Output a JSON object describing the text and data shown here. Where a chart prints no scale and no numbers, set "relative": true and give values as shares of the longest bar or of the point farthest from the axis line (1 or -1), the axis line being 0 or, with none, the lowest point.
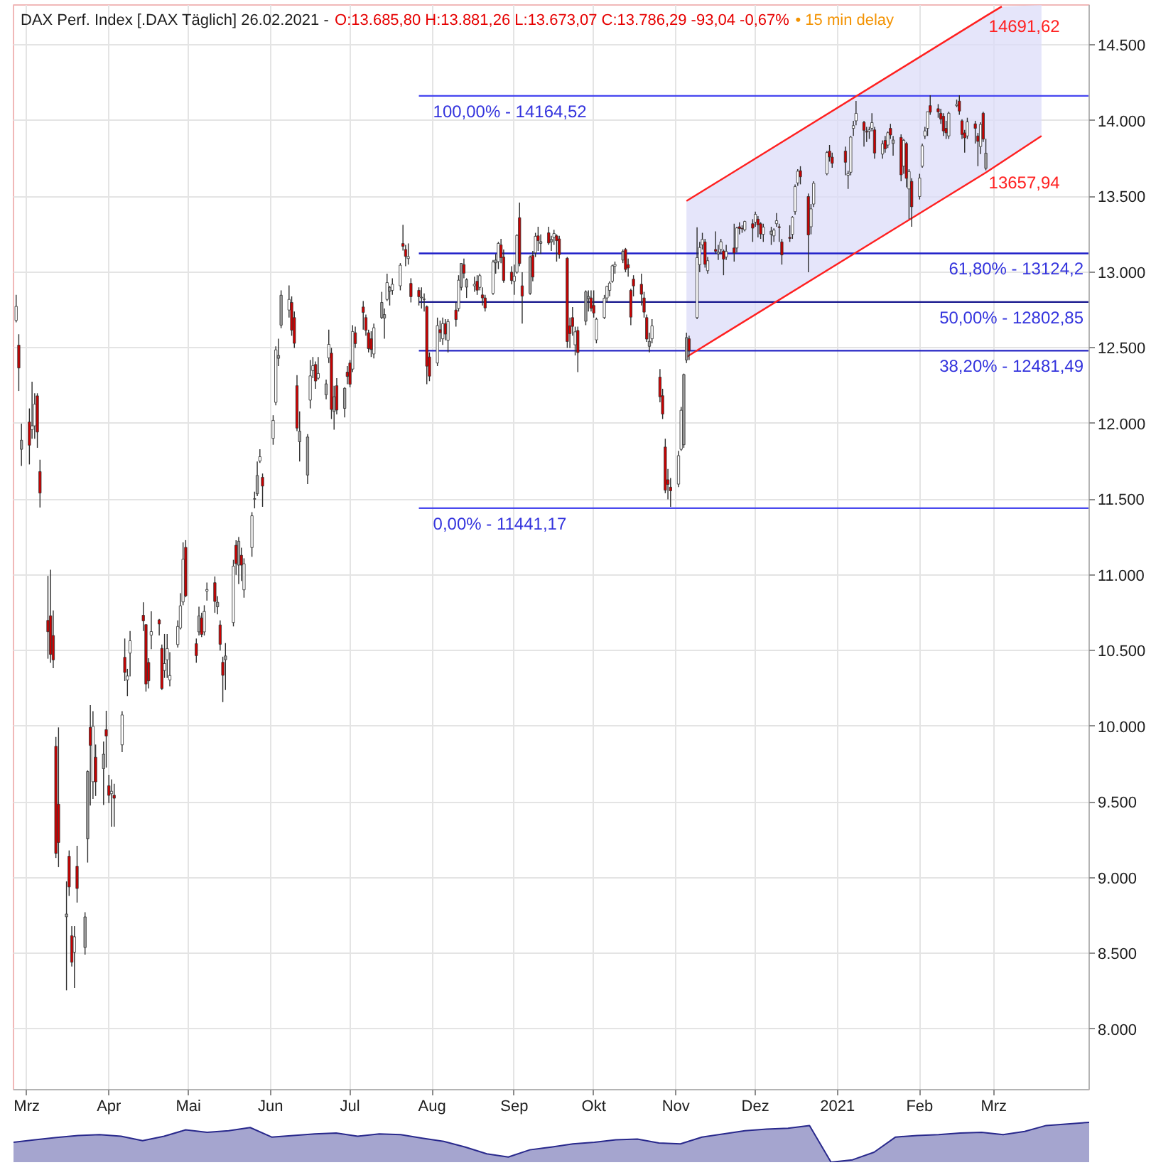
{
  "chart_data": [
    {
      "type": "candlestick",
      "title": "DAX Perf. Index [.DAX Täglich] 26.02.2021 -",
      "subtitle": "O:13.685,80 H:13.881,26 L:13.673,07 C:13.786,29 -93,04 -0,67%",
      "annotations": [
        "• 15 min delay"
      ],
      "x": [
        "2020-02-26",
        "2020-02-27",
        "2020-02-28",
        "2020-03-02",
        "2020-03-03",
        "2020-03-04",
        "2020-03-05",
        "2020-03-06",
        "2020-03-09",
        "2020-03-10",
        "2020-03-11",
        "2020-03-12",
        "2020-03-13",
        "2020-03-16",
        "2020-03-17",
        "2020-03-18",
        "2020-03-19",
        "2020-03-20",
        "2020-03-23",
        "2020-03-24",
        "2020-03-25",
        "2020-03-26",
        "2020-03-27",
        "2020-03-30",
        "2020-03-31",
        "2020-04-01",
        "2020-04-02",
        "2020-04-03",
        "2020-04-06",
        "2020-04-07",
        "2020-04-08",
        "2020-04-09",
        "2020-04-14",
        "2020-04-15",
        "2020-04-16",
        "2020-04-17",
        "2020-04-20",
        "2020-04-21",
        "2020-04-22",
        "2020-04-23",
        "2020-04-24",
        "2020-04-27",
        "2020-04-28",
        "2020-04-29",
        "2020-04-30",
        "2020-05-04",
        "2020-05-05",
        "2020-05-06",
        "2020-05-07",
        "2020-05-08",
        "2020-05-11",
        "2020-05-12",
        "2020-05-13",
        "2020-05-14",
        "2020-05-15",
        "2020-05-18",
        "2020-05-19",
        "2020-05-20",
        "2020-05-21",
        "2020-05-22",
        "2020-05-25",
        "2020-05-26",
        "2020-05-27",
        "2020-05-28",
        "2020-05-29",
        "2020-06-02",
        "2020-06-03",
        "2020-06-04",
        "2020-06-05",
        "2020-06-08",
        "2020-06-09",
        "2020-06-10",
        "2020-06-11",
        "2020-06-12",
        "2020-06-15",
        "2020-06-16",
        "2020-06-17",
        "2020-06-18",
        "2020-06-19",
        "2020-06-22",
        "2020-06-23",
        "2020-06-24",
        "2020-06-25",
        "2020-06-26",
        "2020-06-29",
        "2020-06-30",
        "2020-07-01",
        "2020-07-02",
        "2020-07-03",
        "2020-07-06",
        "2020-07-07",
        "2020-07-08",
        "2020-07-09",
        "2020-07-10",
        "2020-07-13",
        "2020-07-14",
        "2020-07-15",
        "2020-07-16",
        "2020-07-17",
        "2020-07-20",
        "2020-07-21",
        "2020-07-22",
        "2020-07-23",
        "2020-07-24",
        "2020-07-27",
        "2020-07-28",
        "2020-07-29",
        "2020-07-30",
        "2020-07-31",
        "2020-08-03",
        "2020-08-04",
        "2020-08-05",
        "2020-08-06",
        "2020-08-07",
        "2020-08-10",
        "2020-08-11",
        "2020-08-12",
        "2020-08-13",
        "2020-08-14",
        "2020-08-17",
        "2020-08-18",
        "2020-08-19",
        "2020-08-20",
        "2020-08-21",
        "2020-08-24",
        "2020-08-25",
        "2020-08-26",
        "2020-08-27",
        "2020-08-28",
        "2020-08-31",
        "2020-09-01",
        "2020-09-02",
        "2020-09-03",
        "2020-09-04",
        "2020-09-07",
        "2020-09-08",
        "2020-09-09",
        "2020-09-10",
        "2020-09-11",
        "2020-09-14",
        "2020-09-15",
        "2020-09-16",
        "2020-09-17",
        "2020-09-18",
        "2020-09-21",
        "2020-09-22",
        "2020-09-23",
        "2020-09-24",
        "2020-09-25",
        "2020-09-28",
        "2020-09-29",
        "2020-09-30",
        "2020-10-01",
        "2020-10-02",
        "2020-10-05",
        "2020-10-06",
        "2020-10-07",
        "2020-10-08",
        "2020-10-09",
        "2020-10-12",
        "2020-10-13",
        "2020-10-14",
        "2020-10-15",
        "2020-10-16",
        "2020-10-19",
        "2020-10-20",
        "2020-10-21",
        "2020-10-22",
        "2020-10-23",
        "2020-10-26",
        "2020-10-27",
        "2020-10-28",
        "2020-10-29",
        "2020-10-30",
        "2020-11-02",
        "2020-11-03",
        "2020-11-04",
        "2020-11-05",
        "2020-11-06",
        "2020-11-09",
        "2020-11-10",
        "2020-11-11",
        "2020-11-12",
        "2020-11-13",
        "2020-11-16",
        "2020-11-17",
        "2020-11-18",
        "2020-11-19",
        "2020-11-20",
        "2020-11-23",
        "2020-11-24",
        "2020-11-25",
        "2020-11-26",
        "2020-11-27",
        "2020-11-30",
        "2020-12-01",
        "2020-12-02",
        "2020-12-03",
        "2020-12-04",
        "2020-12-07",
        "2020-12-08",
        "2020-12-09",
        "2020-12-10",
        "2020-12-11",
        "2020-12-14",
        "2020-12-15",
        "2020-12-16",
        "2020-12-17",
        "2020-12-18",
        "2020-12-21",
        "2020-12-22",
        "2020-12-23",
        "2020-12-28",
        "2020-12-29",
        "2020-12-30",
        "2021-01-04",
        "2021-01-05",
        "2021-01-06",
        "2021-01-07",
        "2021-01-08",
        "2021-01-11",
        "2021-01-12",
        "2021-01-13",
        "2021-01-14",
        "2021-01-15",
        "2021-01-18",
        "2021-01-19",
        "2021-01-20",
        "2021-01-21",
        "2021-01-22",
        "2021-01-25",
        "2021-01-26",
        "2021-01-27",
        "2021-01-28",
        "2021-01-29",
        "2021-02-01",
        "2021-02-02",
        "2021-02-03",
        "2021-02-04",
        "2021-02-05",
        "2021-02-08",
        "2021-02-09",
        "2021-02-10",
        "2021-02-11",
        "2021-02-12",
        "2021-02-15",
        "2021-02-16",
        "2021-02-17",
        "2021-02-18",
        "2021-02-19",
        "2021-02-22",
        "2021-02-23",
        "2021-02-24",
        "2021-02-25",
        "2021-02-26"
      ],
      "ohlc": [
        [
          12681,
          12850,
          12668,
          12774
        ],
        [
          12518,
          12590,
          12215,
          12367
        ],
        [
          11830,
          12000,
          11720,
          11890
        ],
        [
          12010,
          12100,
          11730,
          11857
        ],
        [
          11960,
          12277,
          11900,
          11985
        ],
        [
          11985,
          12200,
          11900,
          12128
        ],
        [
          12183,
          12200,
          11840,
          11944
        ],
        [
          11683,
          11761,
          11445,
          11541
        ],
        [
          10700,
          10994,
          10447,
          10625
        ],
        [
          10730,
          11035,
          10420,
          10475
        ],
        [
          10600,
          10766,
          10384,
          10439
        ],
        [
          9868,
          9930,
          9130,
          9161
        ],
        [
          9486,
          9993,
          9070,
          9232
        ],
        [
          8760,
          8976,
          8256,
          8742
        ],
        [
          9142,
          9180,
          8880,
          8939
        ],
        [
          8617,
          8680,
          8414,
          8442
        ],
        [
          8508,
          8680,
          8271,
          8610
        ],
        [
          9076,
          9211,
          8836,
          8929
        ],
        [
          8539,
          8772,
          8492,
          8741
        ],
        [
          9258,
          9710,
          9100,
          9701
        ],
        [
          9993,
          10140,
          9477,
          9874
        ],
        [
          9634,
          10100,
          9520,
          10000
        ],
        [
          9796,
          9880,
          9540,
          9633
        ],
        [
          9720,
          9900,
          9480,
          9816
        ],
        [
          9978,
          10103,
          9728,
          9936
        ],
        [
          9608,
          9680,
          9492,
          9544
        ],
        [
          9555,
          9650,
          9337,
          9571
        ],
        [
          9545,
          9620,
          9337,
          9525
        ],
        [
          9878,
          10100,
          9830,
          10075
        ],
        [
          10456,
          10580,
          10300,
          10356
        ],
        [
          10306,
          10380,
          10200,
          10333
        ],
        [
          10484,
          10630,
          10330,
          10565
        ],
        [
          10734,
          10820,
          10630,
          10697
        ],
        [
          10672,
          10672,
          10230,
          10280
        ],
        [
          10422,
          10450,
          10250,
          10301
        ],
        [
          10603,
          10760,
          10510,
          10626
        ],
        [
          10703,
          10710,
          10600,
          10676
        ],
        [
          10515,
          10540,
          10240,
          10250
        ],
        [
          10369,
          10610,
          10320,
          10415
        ],
        [
          10440,
          10610,
          10320,
          10514
        ],
        [
          10306,
          10490,
          10265,
          10336
        ],
        [
          10540,
          10700,
          10520,
          10660
        ],
        [
          10650,
          10880,
          10640,
          10796
        ],
        [
          10822,
          11215,
          10800,
          11104
        ],
        [
          11182,
          11230,
          10853,
          10862
        ],
        [
          10546,
          10580,
          10420,
          10467
        ],
        [
          10624,
          10790,
          10600,
          10729
        ],
        [
          10716,
          10750,
          10590,
          10607
        ],
        [
          10624,
          10800,
          10600,
          10759
        ],
        [
          10893,
          10950,
          10830,
          10904
        ],
        [
          10949,
          10990,
          10750,
          10825
        ],
        [
          10790,
          10860,
          10740,
          10820
        ],
        [
          10670,
          10700,
          10500,
          10542
        ],
        [
          10423,
          10460,
          10160,
          10337
        ],
        [
          10440,
          10550,
          10240,
          10465
        ],
        [
          10686,
          11100,
          10660,
          11058
        ],
        [
          11196,
          11230,
          11000,
          11075
        ],
        [
          11065,
          11250,
          10940,
          11223
        ],
        [
          11130,
          11180,
          10960,
          11065
        ],
        [
          10902,
          11110,
          10850,
          11074
        ],
        [
          11181,
          11415,
          11120,
          11391
        ],
        [
          11500,
          11550,
          11440,
          11504
        ],
        [
          11536,
          11750,
          11520,
          11657
        ],
        [
          11753,
          11830,
          11740,
          11781
        ],
        [
          11645,
          11670,
          11450,
          11587
        ],
        [
          11902,
          12055,
          11860,
          12021
        ],
        [
          12140,
          12510,
          12120,
          12487
        ],
        [
          12450,
          12560,
          12380,
          12431
        ],
        [
          12650,
          12880,
          12630,
          12848
        ],
        [
          12750,
          12913,
          12700,
          12820
        ],
        [
          12800,
          12840,
          12580,
          12617
        ],
        [
          12700,
          12740,
          12500,
          12530
        ],
        [
          12250,
          12320,
          11950,
          11970
        ],
        [
          11880,
          12080,
          11750,
          11949
        ],
        [
          11660,
          11930,
          11600,
          11911
        ],
        [
          12155,
          12420,
          12100,
          12315
        ],
        [
          12350,
          12440,
          12300,
          12382
        ],
        [
          12390,
          12410,
          12230,
          12281
        ],
        [
          12300,
          12440,
          12290,
          12331
        ],
        [
          12190,
          12290,
          12160,
          12262
        ],
        [
          12434,
          12620,
          12400,
          12523
        ],
        [
          12465,
          12500,
          12030,
          12093
        ],
        [
          12080,
          12250,
          11960,
          12177
        ],
        [
          12250,
          12300,
          12060,
          12089
        ],
        [
          12100,
          12240,
          12040,
          12233
        ],
        [
          12340,
          12380,
          12260,
          12311
        ],
        [
          12400,
          12420,
          12240,
          12260
        ],
        [
          12360,
          12650,
          12340,
          12608
        ],
        [
          12600,
          12640,
          12500,
          12528
        ],
        [
          12770,
          12810,
          12620,
          12734
        ],
        [
          12700,
          12720,
          12580,
          12616
        ],
        [
          12600,
          12620,
          12470,
          12495
        ],
        [
          12560,
          12610,
          12440,
          12489
        ],
        [
          12460,
          12660,
          12430,
          12633
        ],
        [
          12700,
          12870,
          12690,
          12800
        ],
        [
          12720,
          12760,
          12560,
          12697
        ],
        [
          12820,
          12990,
          12810,
          12931
        ],
        [
          12900,
          12910,
          12780,
          12874
        ],
        [
          12880,
          12960,
          12850,
          12920
        ],
        [
          12910,
          13060,
          12880,
          13046
        ],
        [
          13189,
          13313,
          13143,
          13171
        ],
        [
          13150,
          13180,
          13040,
          13104
        ],
        [
          13090,
          13190,
          13050,
          13103
        ],
        [
          12926,
          12960,
          12800,
          12838
        ],
        [
          12880,
          12900,
          12780,
          12838
        ],
        [
          12830,
          12900,
          12760,
          12835
        ],
        [
          12820,
          12860,
          12740,
          12822
        ],
        [
          12772,
          12780,
          12260,
          12379
        ],
        [
          12440,
          12470,
          12280,
          12313
        ],
        [
          12400,
          12700,
          12380,
          12647
        ],
        [
          12620,
          12680,
          12540,
          12600
        ],
        [
          12560,
          12700,
          12520,
          12660
        ],
        [
          12660,
          12690,
          12550,
          12591
        ],
        [
          12550,
          12690,
          12470,
          12674
        ],
        [
          12750,
          12800,
          12640,
          12687
        ],
        [
          12760,
          12980,
          12740,
          12947
        ],
        [
          12900,
          13060,
          12880,
          13058
        ],
        [
          13050,
          13090,
          12960,
          12993
        ],
        [
          12950,
          12960,
          12830,
          12901
        ],
        [
          12910,
          12970,
          12870,
          12920
        ],
        [
          12940,
          12980,
          12850,
          12881
        ],
        [
          12900,
          12990,
          12880,
          12977
        ],
        [
          12850,
          12900,
          12780,
          12830
        ],
        [
          12830,
          12850,
          12740,
          12764
        ],
        [
          12860,
          13080,
          12850,
          13067
        ],
        [
          13080,
          13120,
          12990,
          13062
        ],
        [
          13070,
          13200,
          13020,
          13190
        ],
        [
          13180,
          13220,
          13060,
          13096
        ],
        [
          13100,
          13150,
          12930,
          12945
        ],
        [
          13000,
          13040,
          12920,
          12945
        ],
        [
          12940,
          13050,
          12850,
          12974
        ],
        [
          13000,
          13250,
          12990,
          13243
        ],
        [
          13360,
          13460,
          13040,
          13057
        ],
        [
          12910,
          13000,
          12660,
          12842
        ],
        [
          12860,
          13110,
          12850,
          13100
        ],
        [
          13110,
          13140,
          12940,
          12968
        ],
        [
          13128,
          13260,
          13100,
          13237
        ],
        [
          13240,
          13300,
          13140,
          13208
        ],
        [
          13190,
          13250,
          13120,
          13202
        ],
        [
          13260,
          13300,
          13180,
          13193
        ],
        [
          13200,
          13240,
          13140,
          13217
        ],
        [
          13230,
          13280,
          13180,
          13255
        ],
        [
          13240,
          13250,
          13070,
          13208
        ],
        [
          13220,
          13240,
          13090,
          13116
        ],
        [
          13092,
          13100,
          12500,
          12542
        ],
        [
          12646,
          12700,
          12500,
          12594
        ],
        [
          12700,
          12770,
          12580,
          12642
        ],
        [
          12520,
          12640,
          12450,
          12606
        ],
        [
          12615,
          12640,
          12340,
          12469
        ],
        [
          12676,
          12880,
          12650,
          12870
        ],
        [
          12840,
          12880,
          12740,
          12825
        ],
        [
          12830,
          12880,
          12740,
          12761
        ],
        [
          12780,
          12880,
          12700,
          12730
        ],
        [
          12553,
          12700,
          12530,
          12689
        ],
        [
          12700,
          12850,
          12690,
          12828
        ],
        [
          12830,
          12910,
          12800,
          12906
        ],
        [
          12880,
          12940,
          12840,
          12928
        ],
        [
          12940,
          13050,
          12930,
          13042
        ],
        [
          13040,
          13070,
          12990,
          13051
        ],
        [
          13080,
          13150,
          13060,
          13138
        ],
        [
          13150,
          13160,
          13000,
          13018
        ],
        [
          13050,
          13090,
          12970,
          13028
        ],
        [
          12880,
          12890,
          12650,
          12703
        ],
        [
          12954,
          12980,
          12840,
          12909
        ],
        [
          12920,
          12990,
          12780,
          12854
        ],
        [
          12830,
          12870,
          12700,
          12736
        ],
        [
          12700,
          12720,
          12540,
          12558
        ],
        [
          12510,
          12600,
          12470,
          12543
        ],
        [
          12560,
          12690,
          12530,
          12645
        ],
        [
          12307,
          12360,
          12140,
          12177
        ],
        [
          12184,
          12230,
          12030,
          12063
        ],
        [
          11845,
          11900,
          11540,
          11560
        ],
        [
          11629,
          11700,
          11500,
          11598
        ],
        [
          11580,
          11640,
          11450,
          11556
        ],
        [
          11600,
          11820,
          11580,
          11788
        ],
        [
          11830,
          12110,
          11820,
          12088
        ],
        [
          11860,
          12330,
          11840,
          12324
        ],
        [
          12420,
          12600,
          12400,
          12568
        ],
        [
          12560,
          12580,
          12420,
          12480
        ],
        [
          12700,
          13297,
          12690,
          13096
        ],
        [
          13050,
          13200,
          13000,
          13163
        ],
        [
          13180,
          13260,
          13150,
          13216
        ],
        [
          13200,
          13220,
          13030,
          13052
        ],
        [
          13010,
          13100,
          12990,
          13076
        ],
        [
          13150,
          13270,
          13120,
          13138
        ],
        [
          13120,
          13180,
          13080,
          13133
        ],
        [
          13150,
          13220,
          13120,
          13201
        ],
        [
          13140,
          13150,
          12980,
          13086
        ],
        [
          13100,
          13180,
          13080,
          13137
        ],
        [
          13160,
          13320,
          13070,
          13127
        ],
        [
          13160,
          13300,
          13130,
          13292
        ],
        [
          13300,
          13330,
          13250,
          13289
        ],
        [
          13290,
          13310,
          13260,
          13286
        ],
        [
          13280,
          13340,
          13270,
          13335
        ],
        [
          13320,
          13350,
          13200,
          13291
        ],
        [
          13330,
          13400,
          13300,
          13382
        ],
        [
          13350,
          13370,
          13230,
          13313
        ],
        [
          13320,
          13330,
          13220,
          13252
        ],
        [
          13250,
          13320,
          13200,
          13298
        ],
        [
          13250,
          13300,
          13180,
          13271
        ],
        [
          13240,
          13290,
          13200,
          13278
        ],
        [
          13320,
          13390,
          13300,
          13340
        ],
        [
          13300,
          13320,
          13200,
          13295
        ],
        [
          13200,
          13220,
          13050,
          13114
        ],
        [
          13230,
          13310,
          13200,
          13223
        ],
        [
          13250,
          13370,
          13220,
          13363
        ],
        [
          13400,
          13580,
          13380,
          13565
        ],
        [
          13590,
          13680,
          13570,
          13667
        ],
        [
          13670,
          13700,
          13580,
          13630
        ],
        [
          13500,
          13520,
          13000,
          13246
        ],
        [
          13300,
          13450,
          13250,
          13418
        ],
        [
          13450,
          13600,
          13430,
          13587
        ],
        [
          13650,
          13800,
          13640,
          13790
        ],
        [
          13800,
          13840,
          13730,
          13761
        ],
        [
          13760,
          13790,
          13690,
          13719
        ],
        [
          13800,
          13830,
          13640,
          13726
        ],
        [
          13640,
          13670,
          13550,
          13651
        ],
        [
          13660,
          13900,
          13640,
          13892
        ],
        [
          13950,
          14000,
          13900,
          13968
        ],
        [
          14000,
          14131,
          13970,
          14049
        ],
        [
          13990,
          14000,
          13830,
          13937
        ],
        [
          13930,
          13960,
          13860,
          13925
        ],
        [
          13930,
          13960,
          13880,
          13940
        ],
        [
          13950,
          14050,
          13930,
          13988
        ],
        [
          13940,
          13960,
          13750,
          13787
        ],
        [
          13780,
          13870,
          13750,
          13848
        ],
        [
          13870,
          13900,
          13790,
          13815
        ],
        [
          13840,
          13930,
          13820,
          13921
        ],
        [
          13950,
          13980,
          13880,
          13906
        ],
        [
          13850,
          13900,
          13770,
          13873
        ],
        [
          13890,
          13910,
          13600,
          13643
        ],
        [
          13700,
          13880,
          13650,
          13871
        ],
        [
          13850,
          13860,
          13560,
          13620
        ],
        [
          13550,
          13680,
          13350,
          13665
        ],
        [
          13600,
          13620,
          13300,
          13432
        ],
        [
          13500,
          13650,
          13480,
          13622
        ],
        [
          13700,
          13850,
          13690,
          13835
        ],
        [
          13900,
          13960,
          13880,
          13933
        ],
        [
          13950,
          14060,
          13900,
          14060
        ],
        [
          14100,
          14169,
          14040,
          14057
        ],
        [
          14080,
          14110,
          14020,
          14059
        ],
        [
          14050,
          14080,
          13980,
          14011
        ],
        [
          14030,
          14050,
          13900,
          13933
        ],
        [
          13950,
          14000,
          13880,
          13920
        ],
        [
          13900,
          14060,
          13880,
          14050
        ],
        [
          14100,
          14140,
          14090,
          14109
        ],
        [
          14130,
          14169,
          14040,
          14064
        ],
        [
          14000,
          14010,
          13880,
          13909
        ],
        [
          13920,
          13940,
          13790,
          13887
        ],
        [
          13900,
          14020,
          13880,
          13993
        ],
        [
          13980,
          14000,
          13850,
          13950
        ],
        [
          13900,
          13920,
          13700,
          13864
        ],
        [
          13830,
          13990,
          13780,
          13976
        ],
        [
          14050,
          14060,
          13860,
          13879
        ],
        [
          13685.8,
          13881.26,
          13673.07,
          13786.29
        ]
      ],
      "colors": [
        "#ffffff",
        "#cc0000",
        "#a0a0a0",
        "#cc0000",
        "#ffffff",
        "#ffffff",
        "#cc0000",
        "#cc0000",
        "#cc0000",
        "#cc0000",
        "#cc0000",
        "#cc0000",
        "#cc0000",
        "#a0a0a0",
        "#cc0000",
        "#cc0000",
        "#ffffff",
        "#cc0000",
        "#a0a0a0",
        "#a0a0a0",
        "#cc0000",
        "#ffffff",
        "#cc0000",
        "#a0a0a0",
        "#cc0000",
        "#cc0000",
        "#ffffff",
        "#cc0000",
        "#ffffff",
        "#cc0000",
        "#ffffff",
        "#ffffff",
        "#cc0000",
        "#cc0000",
        "#cc0000",
        "#ffffff",
        "#cc0000",
        "#cc0000",
        "#ffffff",
        "#ffffff",
        "#ffffff",
        "#ffffff",
        "#ffffff",
        "#ffffff",
        "#cc0000",
        "#cc0000",
        "#a0a0a0",
        "#cc0000",
        "#ffffff",
        "#ffffff",
        "#cc0000",
        "#a0a0a0",
        "#cc0000",
        "#cc0000",
        "#a0a0a0",
        "#ffffff",
        "#cc0000",
        "#a0a0a0",
        "#cc0000",
        "#ffffff",
        "#ffffff",
        "#ffffff",
        "#a0a0a0",
        "#ffffff",
        "#cc0000",
        "#ffffff",
        "#ffffff",
        "#a0a0a0",
        "#a0a0a0",
        "#ffffff",
        "#cc0000",
        "#cc0000",
        "#cc0000",
        "#a0a0a0",
        "#a0a0a0",
        "#ffffff",
        "#ffffff",
        "#cc0000",
        "#ffffff",
        "#a0a0a0",
        "#ffffff",
        "#cc0000",
        "#a0a0a0",
        "#cc0000",
        "#a0a0a0",
        "#cc0000",
        "#cc0000",
        "#ffffff",
        "#cc0000",
        "#cc0000",
        "#cc0000",
        "#cc0000",
        "#cc0000",
        "#ffffff",
        "#a0a0a0",
        "#a0a0a0",
        "#ffffff",
        "#a0a0a0",
        "#ffffff",
        "#ffffff",
        "#cc0000",
        "#cc0000",
        "#ffffff",
        "#cc0000",
        "#cc0000",
        "#a0a0a0",
        "#a0a0a0",
        "#cc0000",
        "#cc0000",
        "#ffffff",
        "#cc0000",
        "#ffffff",
        "#cc0000",
        "#ffffff",
        "#cc0000",
        "#ffffff",
        "#a0a0a0",
        "#cc0000",
        "#a0a0a0",
        "#ffffff",
        "#cc0000",
        "#ffffff",
        "#cc0000",
        "#cc0000",
        "#ffffff",
        "#a0a0a0",
        "#ffffff",
        "#cc0000",
        "#cc0000",
        "#cc0000",
        "#ffffff",
        "#ffffff",
        "#cc0000",
        "#cc0000",
        "#a0a0a0",
        "#cc0000",
        "#ffffff",
        "#cc0000",
        "#a0a0a0",
        "#cc0000",
        "#a0a0a0",
        "#ffffff",
        "#cc0000",
        "#cc0000",
        "#cc0000",
        "#cc0000",
        "#cc0000",
        "#ffffff",
        "#cc0000",
        "#a0a0a0",
        "#a0a0a0",
        "#cc0000",
        "#cc0000",
        "#ffffff",
        "#ffffff",
        "#ffffff",
        "#ffffff",
        "#ffffff",
        "#ffffff",
        "#a0a0a0",
        "#cc0000",
        "#cc0000",
        "#cc0000",
        "#cc0000",
        "#cc0000",
        "#cc0000",
        "#cc0000",
        "#a0a0a0",
        "#ffffff",
        "#cc0000",
        "#cc0000",
        "#cc0000",
        "#cc0000",
        "#cc0000",
        "#ffffff",
        "#ffffff",
        "#a0a0a0",
        "#a0a0a0",
        "#cc0000",
        "#ffffff",
        "#ffffff",
        "#ffffff",
        "#cc0000",
        "#ffffff",
        "#cc0000",
        "#a0a0a0",
        "#ffffff",
        "#cc0000",
        "#ffffff",
        "#cc0000",
        "#ffffff",
        "#cc0000",
        "#cc0000",
        "#ffffff",
        "#cc0000",
        "#ffffff",
        "#cc0000",
        "#cc0000",
        "#ffffff",
        "#a0a0a0",
        "#ffffff",
        "#ffffff",
        "#cc0000",
        "#cc0000",
        "#cc0000",
        "#ffffff",
        "#ffffff",
        "#ffffff",
        "#cc0000",
        "#cc0000",
        "#ffffff",
        "#ffffff",
        "#ffffff",
        "#cc0000",
        "#cc0000",
        "#cc0000",
        "#ffffff",
        "#ffffff",
        "#ffffff",
        "#ffffff",
        "#cc0000",
        "#cc0000",
        "#ffffff",
        "#ffffff",
        "#cc0000",
        "#ffffff",
        "#cc0000",
        "#ffffff",
        "#cc0000",
        "#a0a0a0",
        "#cc0000",
        "#ffffff",
        "#cc0000",
        "#ffffff",
        "#cc0000",
        "#ffffff",
        "#ffffff",
        "#ffffff",
        "#ffffff",
        "#cc0000",
        "#cc0000",
        "#cc0000",
        "#cc0000",
        "#cc0000",
        "#ffffff",
        "#ffffff",
        "#cc0000",
        "#cc0000",
        "#cc0000",
        "#ffffff",
        "#cc0000",
        "#cc0000",
        "#ffffff",
        "#cc0000",
        "#a0a0a0"
      ],
      "series": [
        {
          "type": "line",
          "name": "100,00% - 14164,52",
          "color": "#4646f0",
          "x": [
            "2020-07-27",
            "2021-04-06"
          ],
          "values": [
            14164.52,
            14164.52
          ]
        },
        {
          "type": "line",
          "name": "61,80% - 13124,2",
          "color": "#1e1ec8",
          "x": [
            "2020-07-27",
            "2021-04-06"
          ],
          "values": [
            13124.2,
            13124.2
          ]
        },
        {
          "type": "line",
          "name": "50,00% - 12802,85",
          "color": "#14148c",
          "x": [
            "2020-07-27",
            "2021-04-06"
          ],
          "values": [
            12802.85,
            12802.85
          ]
        },
        {
          "type": "line",
          "name": "38,20% - 12481,49",
          "color": "#2424c4",
          "x": [
            "2020-07-27",
            "2021-04-06"
          ],
          "values": [
            12481.49,
            12481.49
          ]
        },
        {
          "type": "line",
          "name": "0,00% - 11441,17",
          "color": "#4a4aee",
          "x": [
            "2020-07-27",
            "2021-04-06"
          ],
          "values": [
            11441.17,
            11441.17
          ]
        },
        {
          "type": "line",
          "color": "#ff2020",
          "x": [
            "2020-11-05",
            "2021-02-26",
            "2021-03-19"
          ],
          "values": [
            12440,
            13657.94,
            13900
          ],
          "value_labels": [
            null,
            "13657,94",
            null
          ]
        },
        {
          "type": "line",
          "color": "#ff2020",
          "x": [
            "2020-11-05",
            "2021-02-26",
            "2021-03-04",
            "2021-03-19"
          ],
          "values": [
            13470,
            14691.62,
            14755,
            null
          ],
          "lower": [
            12440,
            13657.94,
            13720,
            13900
          ],
          "upper": [
            13470,
            14691.62,
            14755,
            14765
          ],
          "value_labels": [
            null,
            "14691,62",
            null,
            null
          ]
        }
      ],
      "xlim": [
        "2020-02-25",
        "2021-04-06"
      ],
      "ylim": [
        7600,
        14765
      ],
      "xticks": [
        {
          "value": "2020-03-01",
          "label": "Mrz"
        },
        {
          "value": "2020-04-01",
          "label": "Apr"
        },
        {
          "value": "2020-05-01",
          "label": "Mai"
        },
        {
          "value": "2020-06-01",
          "label": "Jun"
        },
        {
          "value": "2020-07-01",
          "label": "Jul"
        },
        {
          "value": "2020-08-01",
          "label": "Aug"
        },
        {
          "value": "2020-09-01",
          "label": "Sep"
        },
        {
          "value": "2020-10-01",
          "label": "Okt"
        },
        {
          "value": "2020-11-01",
          "label": "Nov"
        },
        {
          "value": "2020-12-01",
          "label": "Dez"
        },
        {
          "value": "2021-01-01",
          "label": "2021"
        },
        {
          "value": "2021-02-01",
          "label": "Feb"
        },
        {
          "value": "2021-03-01",
          "label": "Mrz"
        }
      ],
      "yticks": [
        {
          "value": 8000,
          "label": "8.000"
        },
        {
          "value": 8500,
          "label": "8.500"
        },
        {
          "value": 9000,
          "label": "9.000"
        },
        {
          "value": 9500,
          "label": "9.500"
        },
        {
          "value": 10000,
          "label": "10.000"
        },
        {
          "value": 10500,
          "label": "10.500"
        },
        {
          "value": 11000,
          "label": "11.000"
        },
        {
          "value": 11500,
          "label": "11.500"
        },
        {
          "value": 12000,
          "label": "12.000"
        },
        {
          "value": 12500,
          "label": "12.500"
        },
        {
          "value": 13000,
          "label": "13.000"
        },
        {
          "value": 13500,
          "label": "13.500"
        },
        {
          "value": 14000,
          "label": "14.000"
        },
        {
          "value": 14500,
          "label": "14.500"
        }
      ],
      "grid": true
    },
    {
      "type": "area",
      "relative": true,
      "categories": [
        null,
        null,
        null,
        null,
        null,
        null,
        null,
        null,
        null,
        null,
        null,
        null,
        null,
        null,
        null,
        null,
        null,
        null,
        null,
        null,
        null,
        null,
        null,
        null,
        null,
        null,
        null,
        null,
        null,
        null,
        null,
        null,
        null,
        null,
        null,
        null,
        null,
        null,
        null,
        null,
        null,
        null,
        null,
        null,
        null,
        null,
        null,
        null,
        null,
        null,
        null
      ],
      "values": [
        0.5,
        0.56,
        0.62,
        0.67,
        0.69,
        0.65,
        0.54,
        0.65,
        0.81,
        0.75,
        0.79,
        0.87,
        0.63,
        0.67,
        0.71,
        0.73,
        0.65,
        0.71,
        0.69,
        0.6,
        0.52,
        0.38,
        0.21,
        0.13,
        0.31,
        0.38,
        0.46,
        0.5,
        0.56,
        0.58,
        0.48,
        0.46,
        0.63,
        0.71,
        0.79,
        0.83,
        0.85,
        0.92,
        0,
        0.06,
        0.25,
        0.63,
        0.67,
        0.69,
        0.73,
        0.75,
        0.69,
        0.77,
        0.92,
        0.96,
        1
      ],
      "color": "#28288c"
    }
  ]
}
